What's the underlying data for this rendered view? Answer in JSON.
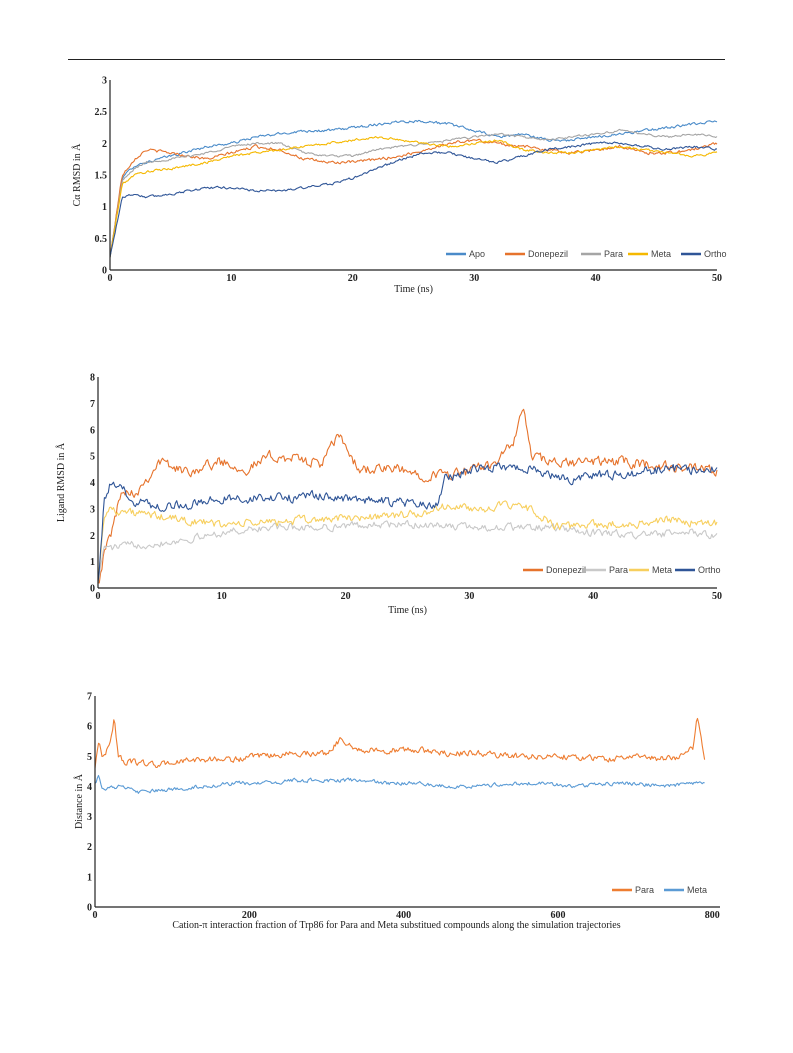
{
  "colors": {
    "apo": "#4a8bc9",
    "donepezil": "#e6732c",
    "para": "#a5a5a5",
    "meta": "#f5b800",
    "ortho": "#2f5597",
    "para_light": "#c9c9c9",
    "meta_light": "#f7cf5e",
    "para_distance": "#ee7d31",
    "meta_distance": "#5b9bd5"
  },
  "caption": "Cation-π interaction fraction of Trp86 for Para and Meta substitued compounds along the simulation trajectories",
  "chart_data": [
    {
      "type": "line",
      "xlabel": "Time (ns)",
      "ylabel": "Cα RMSD in Å",
      "xlim": [
        0,
        50
      ],
      "ylim": [
        0,
        3
      ],
      "xticks": [
        0,
        10,
        20,
        30,
        40,
        50
      ],
      "yticks": [
        0,
        0.5,
        1,
        1.5,
        2,
        2.5,
        3
      ],
      "ytick_labels": [
        "0",
        "0.5",
        "1",
        "1.5",
        "2",
        "2.5",
        "3"
      ],
      "legend_position": "bottom-right",
      "grid": false,
      "series": [
        {
          "name": "Apo",
          "color_key": "apo",
          "x": [
            0,
            1,
            2,
            3,
            5,
            8,
            10,
            12,
            14,
            16,
            18,
            20,
            22,
            24,
            26,
            28,
            30,
            32,
            34,
            36,
            38,
            40,
            42,
            44,
            46,
            48,
            50
          ],
          "y": [
            0.2,
            1.45,
            1.65,
            1.7,
            1.8,
            1.95,
            2.0,
            2.1,
            2.15,
            2.2,
            2.2,
            2.25,
            2.3,
            2.35,
            2.35,
            2.3,
            2.2,
            2.1,
            2.15,
            2.05,
            2.05,
            2.1,
            2.15,
            2.2,
            2.25,
            2.3,
            2.35
          ]
        },
        {
          "name": "Donepezil",
          "color_key": "donepezil",
          "x": [
            0,
            1,
            2,
            3,
            5,
            8,
            10,
            12,
            14,
            16,
            18,
            20,
            22,
            24,
            26,
            28,
            30,
            32,
            34,
            36,
            38,
            40,
            42,
            44,
            46,
            48,
            50
          ],
          "y": [
            0.2,
            1.5,
            1.75,
            1.9,
            1.85,
            1.75,
            1.85,
            1.95,
            1.9,
            1.75,
            1.7,
            1.7,
            1.75,
            1.8,
            1.9,
            2.0,
            2.05,
            2.0,
            1.95,
            1.9,
            1.85,
            1.9,
            1.95,
            1.85,
            1.85,
            1.9,
            2.0
          ]
        },
        {
          "name": "Para",
          "color_key": "para",
          "x": [
            0,
            1,
            2,
            3,
            5,
            8,
            10,
            12,
            14,
            16,
            18,
            20,
            22,
            24,
            26,
            28,
            30,
            32,
            34,
            36,
            38,
            40,
            42,
            44,
            46,
            48,
            50
          ],
          "y": [
            0.2,
            1.4,
            1.6,
            1.7,
            1.75,
            1.85,
            1.95,
            2.0,
            2.0,
            1.85,
            1.8,
            1.8,
            1.9,
            1.95,
            2.0,
            2.05,
            2.1,
            2.15,
            2.1,
            2.05,
            2.1,
            2.15,
            2.2,
            2.15,
            2.1,
            2.15,
            2.1
          ]
        },
        {
          "name": "Meta",
          "color_key": "meta",
          "x": [
            0,
            1,
            2,
            3,
            5,
            8,
            10,
            12,
            14,
            16,
            18,
            20,
            22,
            24,
            26,
            28,
            30,
            32,
            34,
            36,
            38,
            40,
            42,
            44,
            46,
            48,
            50
          ],
          "y": [
            0.2,
            1.35,
            1.5,
            1.55,
            1.6,
            1.7,
            1.8,
            1.85,
            1.9,
            1.95,
            2.0,
            2.05,
            2.1,
            2.05,
            2.0,
            1.95,
            2.0,
            2.05,
            1.9,
            1.85,
            1.85,
            1.9,
            1.95,
            1.9,
            1.85,
            1.8,
            1.85
          ]
        },
        {
          "name": "Ortho",
          "color_key": "ortho",
          "x": [
            0,
            1,
            2,
            3,
            5,
            8,
            10,
            12,
            14,
            16,
            18,
            20,
            22,
            24,
            26,
            28,
            30,
            32,
            34,
            36,
            38,
            40,
            42,
            44,
            46,
            48,
            50
          ],
          "y": [
            0.2,
            1.15,
            1.2,
            1.15,
            1.2,
            1.3,
            1.3,
            1.25,
            1.25,
            1.3,
            1.35,
            1.45,
            1.6,
            1.75,
            1.85,
            1.85,
            1.75,
            1.7,
            1.8,
            1.9,
            1.95,
            2.0,
            2.0,
            1.95,
            1.9,
            1.95,
            1.9
          ]
        }
      ]
    },
    {
      "type": "line",
      "xlabel": "Time (ns)",
      "ylabel": "Ligand RMSD in Å",
      "xlim": [
        0,
        50
      ],
      "ylim": [
        0,
        8
      ],
      "xticks": [
        0,
        10,
        20,
        30,
        40,
        50
      ],
      "yticks": [
        0,
        1,
        2,
        3,
        4,
        5,
        6,
        7,
        8
      ],
      "ytick_labels": [
        "0",
        "1",
        "2",
        "3",
        "4",
        "5",
        "6",
        "7",
        "8"
      ],
      "legend_position": "bottom-right",
      "grid": false,
      "series": [
        {
          "name": "Donepezil",
          "color_key": "donepezil",
          "x": [
            0,
            0.5,
            1,
            2,
            3,
            5,
            7,
            10,
            12,
            14,
            16,
            18,
            19.5,
            21,
            24,
            26,
            28,
            30,
            32,
            33.5,
            34.3,
            35,
            37,
            40,
            42,
            44,
            46,
            48,
            50
          ],
          "y": [
            0.2,
            1.3,
            2.0,
            3.8,
            3.6,
            4.8,
            4.4,
            4.8,
            4.5,
            5.0,
            4.9,
            4.7,
            5.8,
            4.5,
            4.5,
            4.3,
            4.3,
            4.4,
            4.8,
            5.4,
            6.9,
            5.0,
            4.7,
            4.8,
            4.8,
            4.7,
            4.6,
            4.5,
            4.4
          ]
        },
        {
          "name": "Para",
          "color_key": "para_light",
          "x": [
            0,
            0.5,
            1,
            2,
            5,
            8,
            10,
            14,
            18,
            22,
            26,
            30,
            34,
            36,
            38,
            40,
            44,
            48,
            50
          ],
          "y": [
            0.2,
            1.6,
            1.5,
            1.6,
            1.7,
            1.9,
            2.1,
            2.3,
            2.3,
            2.4,
            2.4,
            2.3,
            2.3,
            2.3,
            2.2,
            2.1,
            2.0,
            2.1,
            2.0
          ]
        },
        {
          "name": "Meta",
          "color_key": "meta_light",
          "x": [
            0,
            0.5,
            1,
            2,
            5,
            8,
            10,
            14,
            18,
            22,
            26,
            28,
            30,
            33,
            35,
            37,
            40,
            43,
            46,
            48,
            50
          ],
          "y": [
            0.2,
            2.8,
            3.0,
            2.9,
            2.7,
            2.5,
            2.4,
            2.5,
            2.6,
            2.7,
            2.8,
            3.1,
            3.0,
            3.1,
            3.0,
            2.3,
            2.4,
            2.4,
            2.6,
            2.5,
            2.5
          ]
        },
        {
          "name": "Ortho",
          "color_key": "ortho",
          "x": [
            0,
            0.5,
            1,
            2,
            3,
            5,
            8,
            10,
            14,
            18,
            22,
            26,
            27.5,
            28,
            30,
            32,
            34,
            36,
            38,
            40,
            42,
            44,
            46,
            48,
            50
          ],
          "y": [
            0.2,
            3.3,
            3.9,
            3.7,
            3.3,
            3.1,
            3.2,
            3.4,
            3.4,
            3.5,
            3.3,
            3.2,
            3.1,
            4.1,
            4.5,
            4.6,
            4.6,
            4.4,
            4.1,
            4.3,
            4.3,
            4.4,
            4.5,
            4.5,
            4.6
          ]
        }
      ]
    },
    {
      "type": "line",
      "xlabel": "",
      "ylabel": "Distance in Å",
      "xlim": [
        0,
        810
      ],
      "ylim": [
        0,
        7
      ],
      "xticks": [
        0,
        200,
        400,
        600,
        800
      ],
      "yticks": [
        0,
        1,
        2,
        3,
        4,
        5,
        6,
        7
      ],
      "ytick_labels": [
        "0",
        "1",
        "2",
        "3",
        "4",
        "5",
        "6",
        "7"
      ],
      "legend_position": "bottom-right",
      "grid": false,
      "series": [
        {
          "name": "Para",
          "color_key": "para_distance",
          "x": [
            0,
            5,
            10,
            20,
            25,
            30,
            40,
            60,
            80,
            100,
            140,
            180,
            220,
            260,
            300,
            320,
            340,
            380,
            420,
            460,
            500,
            540,
            580,
            620,
            660,
            700,
            740,
            760,
            775,
            780,
            790
          ],
          "y": [
            4.6,
            5.6,
            4.9,
            5.5,
            6.3,
            5.0,
            4.8,
            4.8,
            4.7,
            4.8,
            4.9,
            4.9,
            5.0,
            5.1,
            5.1,
            5.6,
            5.2,
            5.2,
            5.2,
            5.1,
            5.1,
            5.0,
            5.0,
            5.0,
            4.9,
            5.0,
            4.9,
            5.0,
            5.3,
            6.4,
            4.9
          ]
        },
        {
          "name": "Meta",
          "color_key": "meta_distance",
          "x": [
            0,
            5,
            10,
            30,
            60,
            100,
            140,
            180,
            220,
            260,
            300,
            340,
            380,
            420,
            460,
            500,
            540,
            580,
            620,
            660,
            700,
            740,
            780,
            790
          ],
          "y": [
            4.1,
            4.4,
            3.9,
            4.0,
            3.8,
            3.9,
            4.0,
            4.1,
            4.1,
            4.2,
            4.2,
            4.2,
            4.1,
            4.1,
            4.0,
            4.0,
            4.1,
            4.1,
            4.0,
            4.1,
            4.1,
            4.0,
            4.1,
            4.1
          ]
        }
      ]
    }
  ]
}
